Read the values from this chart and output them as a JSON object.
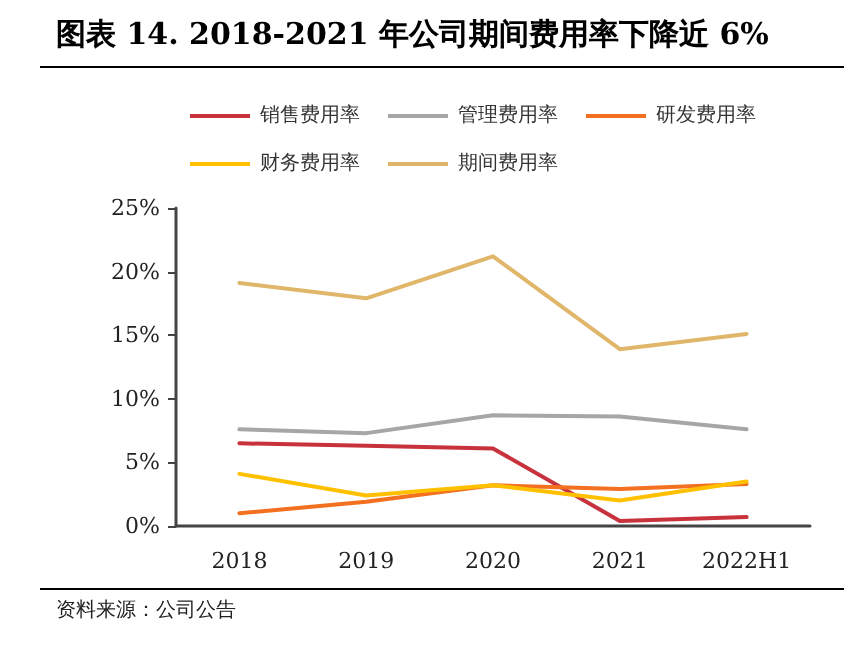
{
  "chart_data": {
    "type": "line",
    "title": "图表 14. 2018-2021 年公司期间费用率下降近 6%",
    "categories": [
      "2018",
      "2019",
      "2020",
      "2021",
      "2022H1"
    ],
    "series": [
      {
        "name": "销售费用率",
        "color": "#c8323c",
        "values": [
          6.5,
          6.3,
          6.1,
          0.4,
          0.7
        ]
      },
      {
        "name": "管理费用率",
        "color": "#a6a6a6",
        "values": [
          7.6,
          7.3,
          8.7,
          8.6,
          7.6
        ]
      },
      {
        "name": "研发费用率",
        "color": "#f37021",
        "values": [
          1.0,
          1.9,
          3.2,
          2.9,
          3.3
        ]
      },
      {
        "name": "财务费用率",
        "color": "#ffc000",
        "values": [
          4.1,
          2.4,
          3.2,
          2.0,
          3.5
        ]
      },
      {
        "name": "期间费用率",
        "color": "#e0b76a",
        "values": [
          19.1,
          17.9,
          21.2,
          13.9,
          15.1
        ]
      }
    ],
    "ylim": [
      0,
      25
    ],
    "yticks": [
      {
        "value": 0,
        "label": "0%"
      },
      {
        "value": 5,
        "label": "5%"
      },
      {
        "value": 10,
        "label": "10%"
      },
      {
        "value": 15,
        "label": "15%"
      },
      {
        "value": 20,
        "label": "20%"
      },
      {
        "value": 25,
        "label": "25%"
      }
    ],
    "annotations": [
      "资料来源：公司公告"
    ],
    "grid": false,
    "legend": "top",
    "marker": "none",
    "line_style": "solid"
  }
}
